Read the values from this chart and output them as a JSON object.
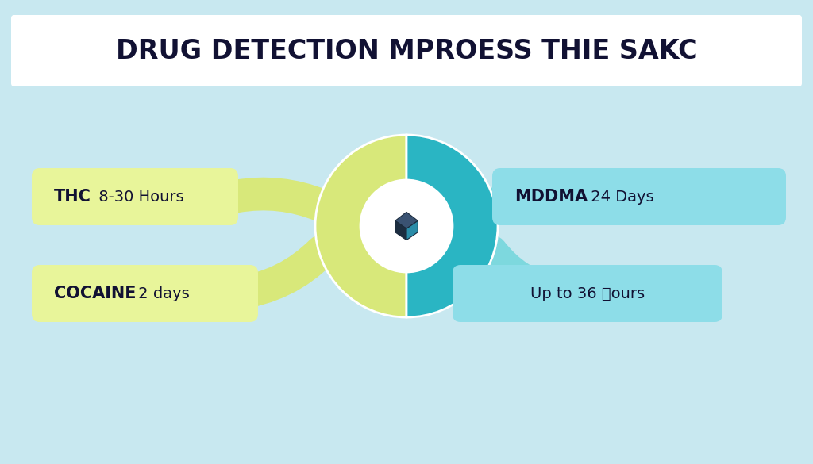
{
  "background_color": "#c8e8f0",
  "title": "DRUG DETECTION MPROESS THIE SAKC",
  "title_fontsize": 24,
  "title_box_color": "#ffffff",
  "title_text_color": "#111133",
  "donut_yellow": "#d8e87a",
  "donut_teal": "#2ab5c3",
  "donut_white": "#ffffff",
  "connector_yellow": "#d8e87a",
  "connector_teal": "#7dd8de",
  "label_yellow_bg": "#e8f59a",
  "label_teal_bg": "#8ddde8",
  "label_text_color": "#111133",
  "thc_bold": "THC",
  "thc_normal": " 8-30 Hours",
  "cocaine_bold": "COCAINE",
  "cocaine_normal": " 2 days",
  "mddma_bold": "MDDMA",
  "mddma_normal": " 24 Days",
  "amp_normal": "Up to 36 \u0000ours",
  "figsize": [
    10.24,
    5.85
  ],
  "dpi": 100
}
